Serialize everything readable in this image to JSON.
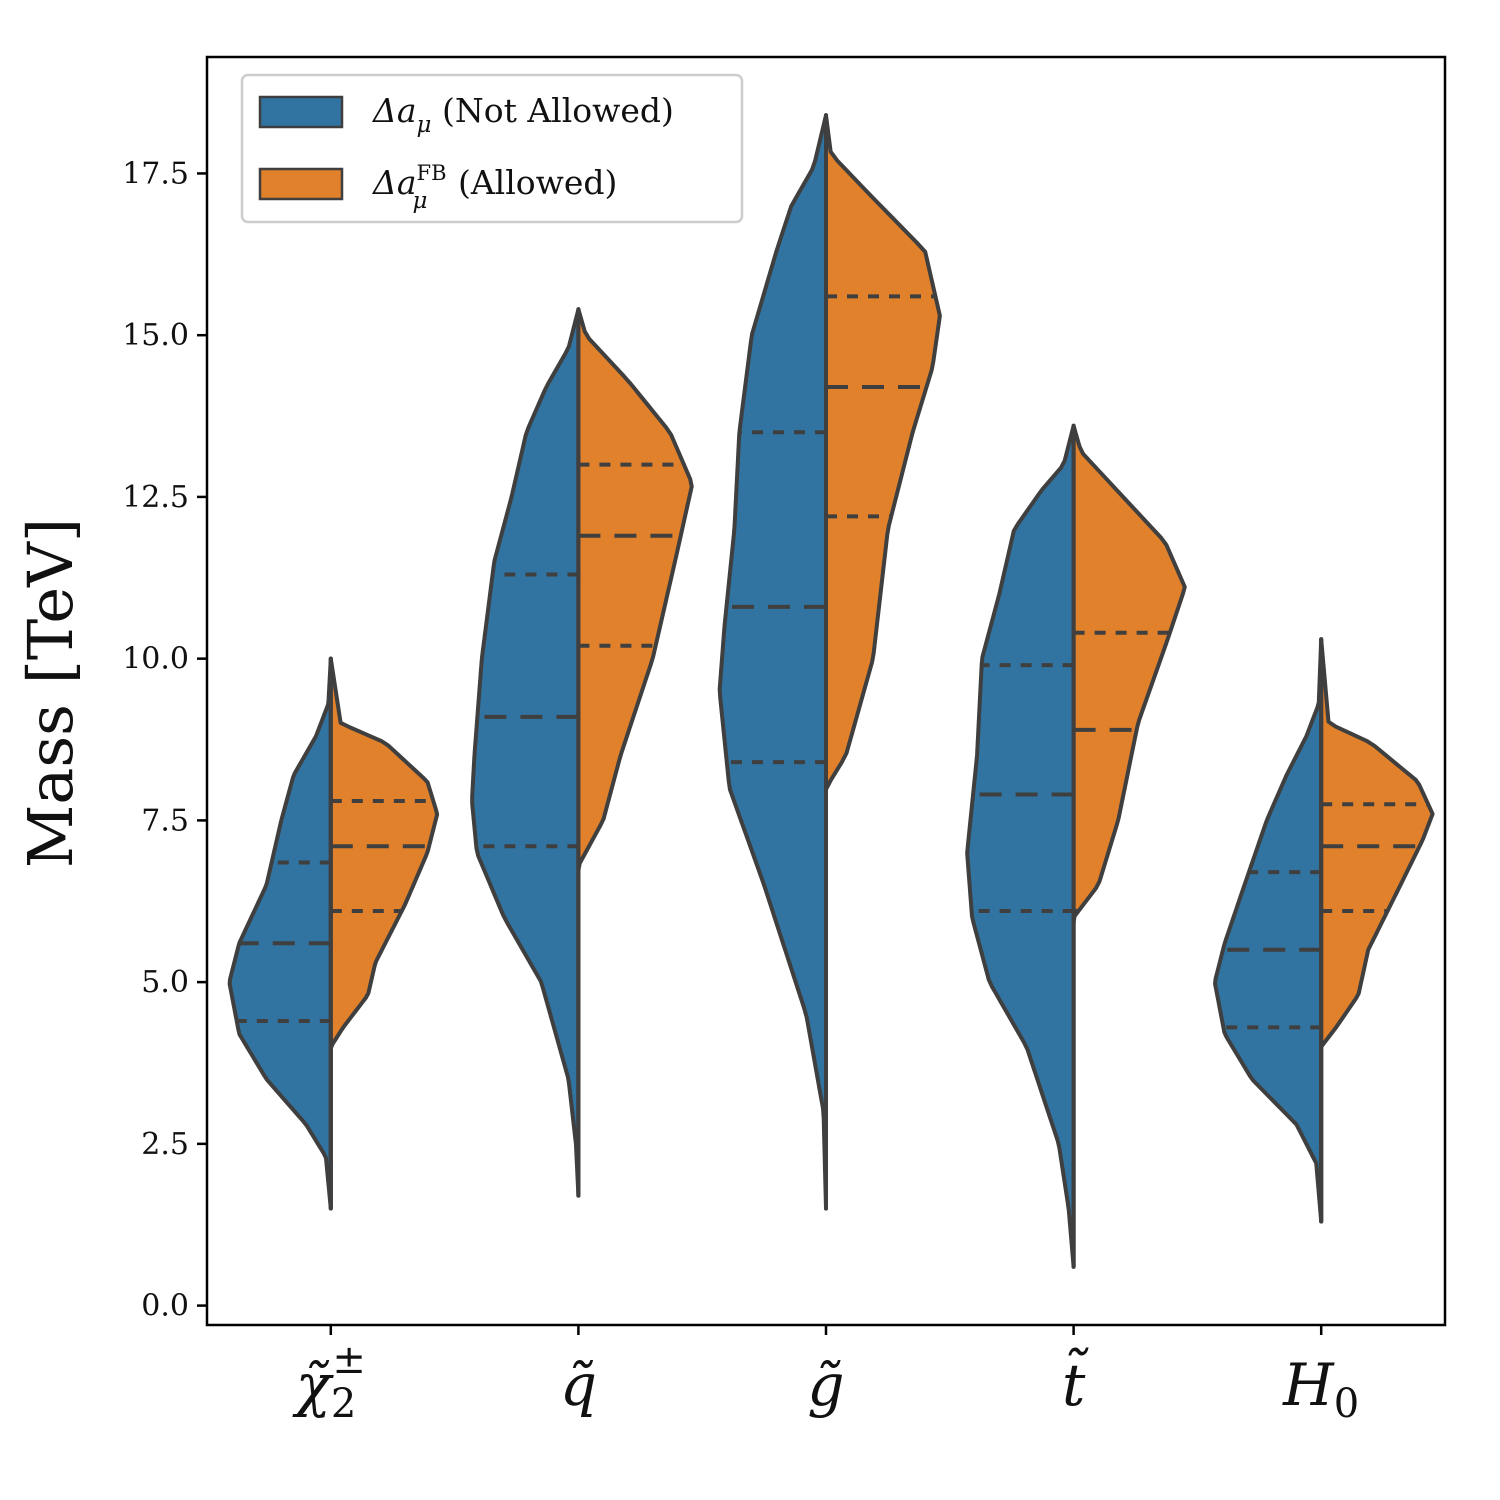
{
  "chart_data": {
    "type": "split-violin",
    "ylabel": "Mass [TeV]",
    "ylim": [
      -0.3,
      19.3
    ],
    "yticks": [
      "0.0",
      "2.5",
      "5.0",
      "7.5",
      "10.0",
      "12.5",
      "15.0",
      "17.5"
    ],
    "ytick_values": [
      0,
      2.5,
      5,
      7.5,
      10,
      12.5,
      15,
      17.5
    ],
    "categories": [
      {
        "base": "χ̃",
        "sup": "±",
        "sub": "2",
        "id": "chi2"
      },
      {
        "base": "q̃",
        "sup": "",
        "sub": "",
        "id": "q"
      },
      {
        "base": "g̃",
        "sup": "",
        "sub": "",
        "id": "g"
      },
      {
        "base": "t̃",
        "sup": "",
        "sub": "",
        "id": "t"
      },
      {
        "base": "H",
        "sup": "",
        "sub": "0",
        "id": "h0"
      }
    ],
    "legend": [
      {
        "label": "Δa",
        "sub": "μ",
        "sup": "",
        "suffix": " (Not Allowed)",
        "color": "#3274a1"
      },
      {
        "label": "Δa",
        "sub": "μ",
        "sup": "FB",
        "suffix": " (Allowed)",
        "color": "#e1812c"
      }
    ],
    "series": [
      {
        "name": "Δa_μ (Not Allowed)",
        "side": "left",
        "color": "#3274a1",
        "violins": [
          {
            "range": [
              1.5,
              10.0
            ],
            "quartiles": [
              4.4,
              5.6,
              6.85
            ],
            "profile": [
              [
                1.5,
                0
              ],
              [
                2.3,
                0.02
              ],
              [
                2.8,
                0.1
              ],
              [
                3.5,
                0.26
              ],
              [
                4.2,
                0.37
              ],
              [
                5.0,
                0.41
              ],
              [
                5.6,
                0.37
              ],
              [
                6.5,
                0.26
              ],
              [
                7.5,
                0.2
              ],
              [
                8.2,
                0.15
              ],
              [
                8.8,
                0.06
              ],
              [
                9.3,
                0.01
              ],
              [
                10.0,
                0
              ]
            ]
          },
          {
            "range": [
              1.7,
              15.4
            ],
            "quartiles": [
              7.1,
              9.1,
              11.3
            ],
            "profile": [
              [
                1.7,
                0
              ],
              [
                2.5,
                0.01
              ],
              [
                3.5,
                0.04
              ],
              [
                5.0,
                0.15
              ],
              [
                6.0,
                0.3
              ],
              [
                7.0,
                0.41
              ],
              [
                7.8,
                0.43
              ],
              [
                8.5,
                0.42
              ],
              [
                10.0,
                0.39
              ],
              [
                11.5,
                0.34
              ],
              [
                12.5,
                0.27
              ],
              [
                13.5,
                0.21
              ],
              [
                14.2,
                0.13
              ],
              [
                14.8,
                0.04
              ],
              [
                15.4,
                0
              ]
            ]
          },
          {
            "range": [
              1.5,
              18.4
            ],
            "quartiles": [
              8.4,
              10.8,
              13.5
            ],
            "profile": [
              [
                1.5,
                0
              ],
              [
                3.0,
                0.01
              ],
              [
                4.5,
                0.08
              ],
              [
                6.5,
                0.25
              ],
              [
                8.0,
                0.39
              ],
              [
                9.5,
                0.43
              ],
              [
                10.5,
                0.41
              ],
              [
                12.0,
                0.37
              ],
              [
                13.5,
                0.35
              ],
              [
                15.0,
                0.3
              ],
              [
                16.3,
                0.2
              ],
              [
                17.0,
                0.14
              ],
              [
                17.6,
                0.05
              ],
              [
                18.4,
                0
              ]
            ]
          },
          {
            "range": [
              0.6,
              13.6
            ],
            "quartiles": [
              6.1,
              7.9,
              9.9
            ],
            "profile": [
              [
                0.6,
                0
              ],
              [
                1.5,
                0.02
              ],
              [
                2.5,
                0.06
              ],
              [
                4.0,
                0.19
              ],
              [
                5.0,
                0.34
              ],
              [
                6.0,
                0.41
              ],
              [
                7.0,
                0.43
              ],
              [
                8.5,
                0.39
              ],
              [
                10.0,
                0.37
              ],
              [
                11.0,
                0.3
              ],
              [
                12.0,
                0.24
              ],
              [
                12.6,
                0.13
              ],
              [
                13.0,
                0.04
              ],
              [
                13.6,
                0
              ]
            ]
          },
          {
            "range": [
              1.3,
              10.3
            ],
            "quartiles": [
              4.3,
              5.5,
              6.7
            ],
            "profile": [
              [
                1.3,
                0
              ],
              [
                2.2,
                0.02
              ],
              [
                2.8,
                0.1
              ],
              [
                3.5,
                0.28
              ],
              [
                4.2,
                0.39
              ],
              [
                5.0,
                0.43
              ],
              [
                5.6,
                0.39
              ],
              [
                6.5,
                0.31
              ],
              [
                7.5,
                0.22
              ],
              [
                8.2,
                0.14
              ],
              [
                8.8,
                0.06
              ],
              [
                9.3,
                0.01
              ],
              [
                10.3,
                0
              ]
            ]
          }
        ]
      },
      {
        "name": "Δa_μ^FB (Allowed)",
        "side": "right",
        "color": "#e1812c",
        "violins": [
          {
            "range": [
              1.5,
              10.0
            ],
            "quartiles": [
              6.1,
              7.1,
              7.8
            ],
            "profile": [
              [
                1.5,
                0
              ],
              [
                4.0,
                0.0
              ],
              [
                4.3,
                0.05
              ],
              [
                4.8,
                0.15
              ],
              [
                5.3,
                0.18
              ],
              [
                6.2,
                0.3
              ],
              [
                7.0,
                0.39
              ],
              [
                7.6,
                0.43
              ],
              [
                8.1,
                0.39
              ],
              [
                8.7,
                0.22
              ],
              [
                9.0,
                0.04
              ],
              [
                10.0,
                0
              ]
            ]
          },
          {
            "range": [
              1.7,
              15.4
            ],
            "quartiles": [
              10.2,
              11.9,
              13.0
            ],
            "profile": [
              [
                1.7,
                0
              ],
              [
                6.8,
                0.0
              ],
              [
                7.5,
                0.1
              ],
              [
                8.5,
                0.17
              ],
              [
                10.0,
                0.3
              ],
              [
                11.5,
                0.39
              ],
              [
                12.7,
                0.46
              ],
              [
                13.5,
                0.37
              ],
              [
                14.3,
                0.2
              ],
              [
                15.0,
                0.03
              ],
              [
                15.4,
                0
              ]
            ]
          },
          {
            "range": [
              1.5,
              18.4
            ],
            "quartiles": [
              12.2,
              14.2,
              15.6
            ],
            "profile": [
              [
                1.5,
                0
              ],
              [
                8.0,
                0.0
              ],
              [
                8.5,
                0.08
              ],
              [
                10.0,
                0.19
              ],
              [
                12.0,
                0.25
              ],
              [
                13.5,
                0.35
              ],
              [
                14.5,
                0.43
              ],
              [
                15.3,
                0.46
              ],
              [
                16.3,
                0.4
              ],
              [
                17.2,
                0.17
              ],
              [
                17.8,
                0.02
              ],
              [
                18.4,
                0
              ]
            ]
          },
          {
            "range": [
              0.6,
              13.6
            ],
            "quartiles": [
              6.1,
              8.9,
              10.4
            ],
            "profile": [
              [
                0.6,
                0
              ],
              [
                6.0,
                0.0
              ],
              [
                6.5,
                0.1
              ],
              [
                7.5,
                0.18
              ],
              [
                9.0,
                0.26
              ],
              [
                10.3,
                0.38
              ],
              [
                11.1,
                0.45
              ],
              [
                11.8,
                0.37
              ],
              [
                12.5,
                0.2
              ],
              [
                13.2,
                0.03
              ],
              [
                13.6,
                0
              ]
            ]
          },
          {
            "range": [
              1.3,
              10.3
            ],
            "quartiles": [
              6.1,
              7.1,
              7.75
            ],
            "profile": [
              [
                1.3,
                0
              ],
              [
                4.0,
                0.0
              ],
              [
                4.3,
                0.06
              ],
              [
                4.8,
                0.15
              ],
              [
                5.5,
                0.19
              ],
              [
                6.5,
                0.32
              ],
              [
                7.2,
                0.41
              ],
              [
                7.6,
                0.45
              ],
              [
                8.1,
                0.39
              ],
              [
                8.7,
                0.2
              ],
              [
                9.0,
                0.03
              ],
              [
                10.3,
                0
              ]
            ]
          }
        ]
      }
    ]
  }
}
